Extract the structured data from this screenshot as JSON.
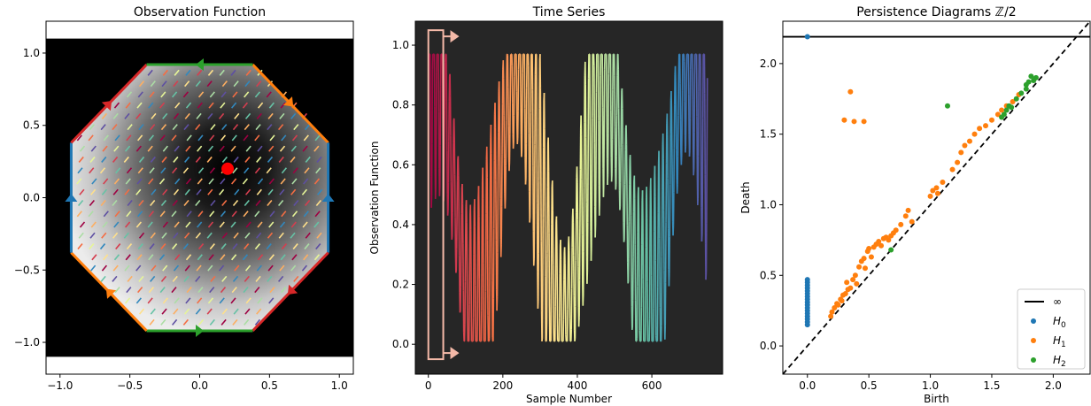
{
  "chart_data": [
    {
      "type": "heatmap",
      "title": "Observation Function",
      "xlim": [
        -1.1,
        1.1
      ],
      "ylim": [
        -1.22,
        1.22
      ],
      "x_ticks": [
        -1.0,
        -0.5,
        0.0,
        0.5,
        1.0
      ],
      "y_ticks": [
        -1.0,
        -0.5,
        0.0,
        0.5,
        1.0
      ],
      "x_tick_labels": [
        "−1.0",
        "−0.5",
        "0.0",
        "0.5",
        "1.0"
      ],
      "y_tick_labels": [
        "−1.0",
        "−0.5",
        "0.0",
        "0.5",
        "1.0"
      ],
      "octagon_vertices": [
        [
          0.38,
          0.92
        ],
        [
          0.92,
          0.38
        ],
        [
          0.92,
          -0.38
        ],
        [
          0.38,
          -0.92
        ],
        [
          -0.38,
          -0.92
        ],
        [
          -0.92,
          -0.38
        ],
        [
          -0.92,
          0.38
        ],
        [
          -0.38,
          0.92
        ]
      ],
      "marked_point": [
        0.2,
        0.2
      ],
      "edge_colors": {
        "blue": "#1f77b4",
        "orange": "#ff7f0e",
        "green": "#2ca02c",
        "red": "#d62728"
      },
      "background": "#000000"
    },
    {
      "type": "line",
      "title": "Time Series",
      "xlabel": "Sample Number",
      "ylabel": "Observation Function",
      "xlim": [
        -35,
        790
      ],
      "ylim": [
        -0.1,
        1.08
      ],
      "x_ticks": [
        0,
        200,
        400,
        600
      ],
      "y_ticks": [
        0.0,
        0.2,
        0.4,
        0.6,
        0.8,
        1.0
      ],
      "x_tick_labels": [
        "0",
        "200",
        "400",
        "600"
      ],
      "y_tick_labels": [
        "0.0",
        "0.2",
        "0.4",
        "0.6",
        "0.8",
        "1.0"
      ],
      "n_samples": 750,
      "colormap": "Spectral",
      "window": {
        "x_start": 0,
        "x_end": 40,
        "y_start": -0.05,
        "y_end": 1.05,
        "color": "#f4b9a8"
      },
      "background": "#262626"
    },
    {
      "type": "scatter",
      "title": "Persistence Diagrams ℤ/2",
      "xlabel": "Birth",
      "ylabel": "Death",
      "xlim": [
        -0.2,
        2.3
      ],
      "ylim": [
        -0.2,
        2.3
      ],
      "x_ticks": [
        0.0,
        0.5,
        1.0,
        1.5,
        2.0
      ],
      "y_ticks": [
        0.0,
        0.5,
        1.0,
        1.5,
        2.0
      ],
      "x_tick_labels": [
        "0.0",
        "0.5",
        "1.0",
        "1.5",
        "2.0"
      ],
      "y_tick_labels": [
        "0.0",
        "0.5",
        "1.0",
        "1.5",
        "2.0"
      ],
      "infinity_level": 2.19,
      "legend": {
        "placement": "lower-right",
        "entries": [
          "∞",
          "H",
          "H",
          "H"
        ],
        "subscripts": [
          "",
          "0",
          "1",
          "2"
        ]
      },
      "series": [
        {
          "name": "H0",
          "color": "#1f77b4",
          "points": [
            [
              0,
              2.19
            ],
            [
              0,
              0.15
            ],
            [
              0,
              0.17
            ],
            [
              0,
              0.19
            ],
            [
              0,
              0.21
            ],
            [
              0,
              0.23
            ],
            [
              0,
              0.25
            ],
            [
              0,
              0.27
            ],
            [
              0,
              0.29
            ],
            [
              0,
              0.31
            ],
            [
              0,
              0.33
            ],
            [
              0,
              0.35
            ],
            [
              0,
              0.37
            ],
            [
              0,
              0.39
            ],
            [
              0,
              0.41
            ],
            [
              0,
              0.43
            ],
            [
              0,
              0.45
            ],
            [
              0,
              0.47
            ]
          ]
        },
        {
          "name": "H1",
          "color": "#ff7f0e",
          "points": [
            [
              0.35,
              1.8
            ],
            [
              0.3,
              1.6
            ],
            [
              0.38,
              1.59
            ],
            [
              0.46,
              1.59
            ],
            [
              0.19,
              0.21
            ],
            [
              0.2,
              0.24
            ],
            [
              0.22,
              0.27
            ],
            [
              0.24,
              0.3
            ],
            [
              0.25,
              0.29
            ],
            [
              0.27,
              0.33
            ],
            [
              0.29,
              0.36
            ],
            [
              0.28,
              0.32
            ],
            [
              0.31,
              0.37
            ],
            [
              0.33,
              0.4
            ],
            [
              0.35,
              0.41
            ],
            [
              0.32,
              0.45
            ],
            [
              0.37,
              0.47
            ],
            [
              0.39,
              0.5
            ],
            [
              0.4,
              0.44
            ],
            [
              0.42,
              0.56
            ],
            [
              0.44,
              0.6
            ],
            [
              0.46,
              0.62
            ],
            [
              0.47,
              0.55
            ],
            [
              0.49,
              0.67
            ],
            [
              0.5,
              0.69
            ],
            [
              0.52,
              0.63
            ],
            [
              0.54,
              0.7
            ],
            [
              0.56,
              0.72
            ],
            [
              0.58,
              0.74
            ],
            [
              0.6,
              0.71
            ],
            [
              0.62,
              0.76
            ],
            [
              0.64,
              0.77
            ],
            [
              0.66,
              0.75
            ],
            [
              0.68,
              0.78
            ],
            [
              0.7,
              0.8
            ],
            [
              0.72,
              0.82
            ],
            [
              0.76,
              0.86
            ],
            [
              0.8,
              0.92
            ],
            [
              0.82,
              0.96
            ],
            [
              0.85,
              0.88
            ],
            [
              1.0,
              1.06
            ],
            [
              1.02,
              1.1
            ],
            [
              1.05,
              1.12
            ],
            [
              1.06,
              1.08
            ],
            [
              1.1,
              1.16
            ],
            [
              1.18,
              1.25
            ],
            [
              1.22,
              1.3
            ],
            [
              1.25,
              1.37
            ],
            [
              1.28,
              1.42
            ],
            [
              1.32,
              1.45
            ],
            [
              1.36,
              1.5
            ],
            [
              1.4,
              1.54
            ],
            [
              1.45,
              1.56
            ],
            [
              1.5,
              1.6
            ],
            [
              1.55,
              1.64
            ],
            [
              1.58,
              1.67
            ],
            [
              1.62,
              1.7
            ],
            [
              1.67,
              1.73
            ],
            [
              1.72,
              1.78
            ]
          ]
        },
        {
          "name": "H2",
          "color": "#2ca02c",
          "points": [
            [
              1.14,
              1.7
            ],
            [
              0.68,
              0.68
            ],
            [
              1.58,
              1.62
            ],
            [
              1.6,
              1.64
            ],
            [
              1.62,
              1.67
            ],
            [
              1.64,
              1.7
            ],
            [
              1.66,
              1.69
            ],
            [
              1.7,
              1.75
            ],
            [
              1.74,
              1.79
            ],
            [
              1.78,
              1.85
            ],
            [
              1.8,
              1.87
            ],
            [
              1.82,
              1.91
            ],
            [
              1.84,
              1.88
            ],
            [
              1.86,
              1.9
            ],
            [
              1.78,
              1.82
            ]
          ]
        }
      ]
    }
  ]
}
